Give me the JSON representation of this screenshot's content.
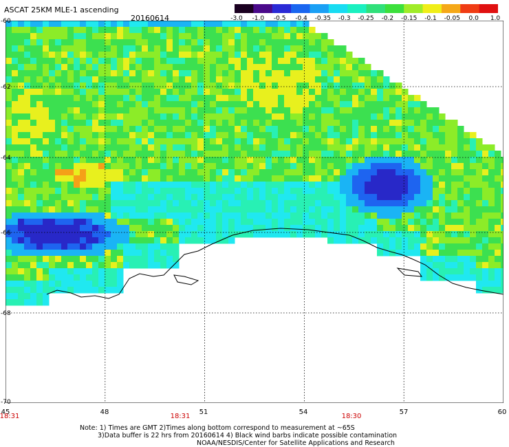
{
  "header": {
    "title": "ASCAT 25KM MLE-1 ascending",
    "date": "20160614"
  },
  "colorbar": {
    "labels": [
      "-3.0",
      "-1.0",
      "-0.5",
      "-0.4",
      "-0.35",
      "-0.3",
      "-0.25",
      "-0.2",
      "-0.15",
      "-0.1",
      "-0.05",
      "0.0",
      "1.0"
    ],
    "colors": [
      "#1a0020",
      "#4a0a8a",
      "#2a2ad6",
      "#1a66f0",
      "#1aa0f5",
      "#18dcf2",
      "#1af0c0",
      "#30e07a",
      "#3ce03c",
      "#a0ec28",
      "#f0ee18",
      "#f5a818",
      "#f03c14",
      "#e01010"
    ]
  },
  "axes": {
    "lat_labels": [
      "-60",
      "-62",
      "-64",
      "-66",
      "-68",
      "-70"
    ],
    "lon_labels": [
      "45",
      "48",
      "51",
      "54",
      "57",
      "60"
    ],
    "time_labels": [
      "18:31",
      "18:31",
      "18:30"
    ]
  },
  "map": {
    "field_colors": {
      "yellow": "#e8f01e",
      "lime": "#8cec28",
      "green": "#3ce050",
      "teal": "#28f0b4",
      "cyan": "#20e8f0",
      "lightblue": "#1ab4f5",
      "blue": "#1e64f0",
      "darkblue": "#2828c8",
      "orange": "#f5a018"
    }
  },
  "notes": {
    "line1": "Note: 1) Times are GMT 2)Times along bottom correspond to measurement at ~65S",
    "line2": "3)Data buffer is 22 hrs from 20160614 4) Black wind barbs indicate possible contamination",
    "line3": "NOAA/NESDIS/Center for Satellite Applications and Research"
  }
}
